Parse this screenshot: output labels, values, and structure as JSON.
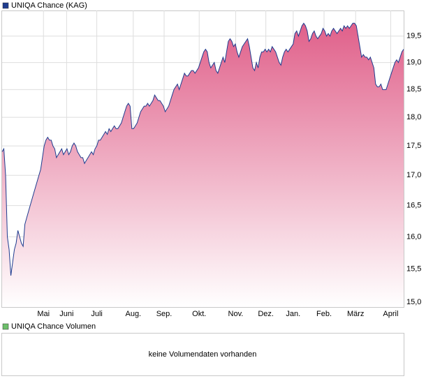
{
  "chart_data": [
    {
      "type": "area",
      "series": [
        {
          "name": "UNIQA Chance (KAG)",
          "color": "#1e3c8f",
          "fill": "#e0608a",
          "values": [
            17.4,
            17.45,
            17.0,
            16.0,
            15.8,
            15.4,
            15.6,
            15.8,
            15.9,
            16.1,
            16.0,
            15.9,
            15.85,
            16.2,
            16.3,
            16.4,
            16.5,
            16.6,
            16.7,
            16.8,
            16.9,
            17.0,
            17.1,
            17.3,
            17.5,
            17.6,
            17.65,
            17.6,
            17.6,
            17.5,
            17.45,
            17.3,
            17.35,
            17.4,
            17.45,
            17.35,
            17.4,
            17.45,
            17.35,
            17.4,
            17.5,
            17.55,
            17.5,
            17.4,
            17.35,
            17.3,
            17.3,
            17.2,
            17.25,
            17.3,
            17.35,
            17.4,
            17.35,
            17.45,
            17.5,
            17.6,
            17.6,
            17.65,
            17.7,
            17.75,
            17.7,
            17.8,
            17.75,
            17.8,
            17.85,
            17.8,
            17.8,
            17.85,
            17.9,
            18.0,
            18.1,
            18.2,
            18.25,
            18.2,
            17.8,
            17.8,
            17.85,
            17.9,
            18.0,
            18.1,
            18.15,
            18.2,
            18.2,
            18.25,
            18.2,
            18.25,
            18.3,
            18.4,
            18.35,
            18.3,
            18.3,
            18.25,
            18.2,
            18.1,
            18.15,
            18.2,
            18.3,
            18.4,
            18.5,
            18.55,
            18.6,
            18.5,
            18.6,
            18.7,
            18.8,
            18.75,
            18.75,
            18.8,
            18.85,
            18.85,
            18.8,
            18.85,
            18.9,
            19.0,
            19.1,
            19.2,
            19.25,
            19.2,
            19.0,
            18.9,
            18.95,
            19.0,
            18.85,
            18.8,
            18.9,
            19.0,
            19.1,
            19.0,
            19.2,
            19.4,
            19.45,
            19.4,
            19.3,
            19.35,
            19.2,
            19.1,
            19.2,
            19.3,
            19.35,
            19.4,
            19.45,
            19.3,
            19.1,
            18.9,
            18.85,
            19.0,
            18.9,
            19.1,
            19.2,
            19.2,
            19.25,
            19.2,
            19.25,
            19.2,
            19.3,
            19.25,
            19.2,
            19.1,
            19.0,
            18.95,
            19.1,
            19.2,
            19.25,
            19.2,
            19.25,
            19.3,
            19.35,
            19.55,
            19.6,
            19.5,
            19.6,
            19.7,
            19.75,
            19.7,
            19.6,
            19.4,
            19.45,
            19.55,
            19.6,
            19.5,
            19.45,
            19.5,
            19.55,
            19.65,
            19.6,
            19.5,
            19.55,
            19.5,
            19.6,
            19.65,
            19.6,
            19.55,
            19.6,
            19.65,
            19.6,
            19.7,
            19.65,
            19.7,
            19.65,
            19.7,
            19.75,
            19.75,
            19.7,
            19.5,
            19.3,
            19.1,
            19.15,
            19.1,
            19.1,
            19.05,
            19.1,
            19.0,
            18.9,
            18.6,
            18.55,
            18.55,
            18.6,
            18.5,
            18.5,
            18.5,
            18.6,
            18.7,
            18.8,
            18.9,
            19.0,
            19.05,
            19.0,
            19.1,
            19.2,
            19.25
          ]
        }
      ],
      "xlim": [
        0,
        229
      ],
      "xticks": [
        {
          "value": 23.6,
          "label": "Mai"
        },
        {
          "value": 36.8,
          "label": "Juni"
        },
        {
          "value": 54,
          "label": "Juli"
        },
        {
          "value": 74.8,
          "label": "Aug."
        },
        {
          "value": 92.4,
          "label": "Sep."
        },
        {
          "value": 112.4,
          "label": "Okt."
        },
        {
          "value": 133.2,
          "label": "Nov."
        },
        {
          "value": 150.4,
          "label": "Dez."
        },
        {
          "value": 166,
          "label": "Jan."
        },
        {
          "value": 183.6,
          "label": "Feb."
        },
        {
          "value": 201.6,
          "label": "März"
        },
        {
          "value": 221.6,
          "label": "April"
        }
      ],
      "ylim": [
        14.93,
        20.0
      ],
      "yticks": [
        {
          "value": 15,
          "label": "15,0"
        },
        {
          "value": 15.5,
          "label": "15,5"
        },
        {
          "value": 16,
          "label": "16,0"
        },
        {
          "value": 16.5,
          "label": "16,5"
        },
        {
          "value": 17,
          "label": "17,0"
        },
        {
          "value": 17.5,
          "label": "17,5"
        },
        {
          "value": 18,
          "label": "18,0"
        },
        {
          "value": 18.5,
          "label": "18,5"
        },
        {
          "value": 19,
          "label": "19,0"
        },
        {
          "value": 19.5,
          "label": "19,5"
        }
      ],
      "log_scale": true,
      "grid": true
    },
    {
      "type": "bar",
      "series": [
        {
          "name": "UNIQA Chance Volumen",
          "color": "#6cbf6a",
          "values": []
        }
      ],
      "annotations": [
        "keine Volumendaten vorhanden"
      ]
    }
  ]
}
